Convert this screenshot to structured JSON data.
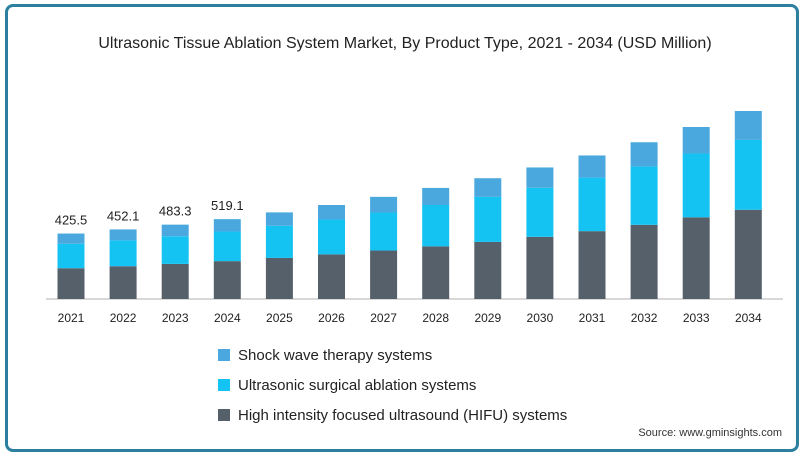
{
  "title": "Ultrasonic Tissue Ablation System Market, By Product Type, 2021 - 2034 (USD Million)",
  "source": "Source: www.gminsights.com",
  "colors": {
    "shock_wave": "#4aa8de",
    "ultrasonic_surgical": "#14c3f2",
    "hifu": "#56606b",
    "frame": "#2c7f9f",
    "axis": "#b0b0b0"
  },
  "chart_data": {
    "type": "bar",
    "stacked": true,
    "categories": [
      "2021",
      "2022",
      "2023",
      "2024",
      "2025",
      "2026",
      "2027",
      "2028",
      "2029",
      "2030",
      "2031",
      "2032",
      "2033",
      "2034"
    ],
    "series": [
      {
        "name": "High intensity focused ultrasound (HIFU) systems",
        "color": "#56606b",
        "values": [
          200,
          213,
          228,
          246,
          267,
          290,
          315,
          342,
          371,
          404,
          441,
          482,
          531,
          580
        ]
      },
      {
        "name": "Ultrasonic surgical ablation systems",
        "color": "#14c3f2",
        "values": [
          159,
          168,
          180,
          193,
          209,
          227,
          247,
          269,
          293,
          319,
          348,
          380,
          415,
          454
        ]
      },
      {
        "name": "Shock wave therapy systems",
        "color": "#4aa8de",
        "values": [
          66.5,
          71.1,
          75.3,
          80.1,
          87,
          94,
          102,
          111,
          121,
          132,
          144,
          157,
          172,
          188
        ]
      }
    ],
    "totals_labels": [
      "425.5",
      "452.1",
      "483.3",
      "519.1"
    ],
    "legend_position": "bottom",
    "grid": false,
    "ylim": [
      0,
      1300
    ]
  }
}
